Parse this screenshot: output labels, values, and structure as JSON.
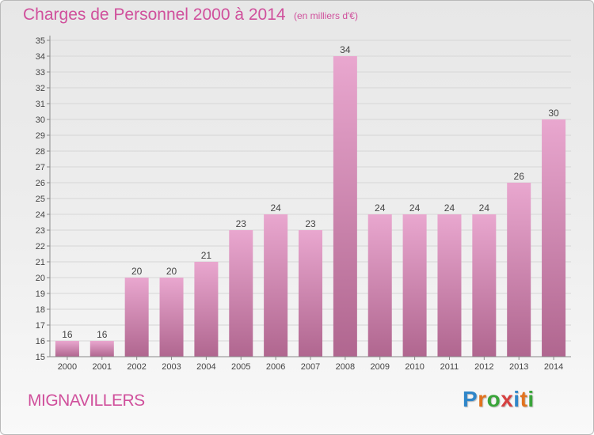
{
  "title": "Charges de Personnel 2000 à 2014",
  "subtitle": "(en milliers d'€)",
  "commune": "MIGNAVILLERS",
  "brand": {
    "letters": [
      "P",
      "r",
      "o",
      "x",
      "i",
      "t",
      "i"
    ],
    "colors": [
      "#2f86c9",
      "#e2731f",
      "#3aa53a",
      "#d64040",
      "#2f86c9",
      "#e2731f",
      "#3aa53a"
    ]
  },
  "colors": {
    "title": "#d0509c",
    "bar_top": "#e9a7cf",
    "bar_bottom": "#b0668f",
    "grid": "#d6d6d6",
    "axis": "#8a8a8a",
    "text": "#444444"
  },
  "chart_data": {
    "type": "bar",
    "title": "Charges de Personnel 2000 à 2014",
    "subtitle": "(en milliers d'€)",
    "categories": [
      "2000",
      "2001",
      "2002",
      "2003",
      "2004",
      "2005",
      "2006",
      "2007",
      "2008",
      "2009",
      "2010",
      "2011",
      "2012",
      "2013",
      "2014"
    ],
    "values": [
      16,
      16,
      20,
      20,
      21,
      23,
      24,
      23,
      34,
      24,
      24,
      24,
      24,
      26,
      30
    ],
    "yticks": [
      15,
      16,
      17,
      18,
      19,
      20,
      21,
      22,
      23,
      24,
      25,
      26,
      27,
      28,
      29,
      30,
      31,
      32,
      33,
      34,
      35
    ],
    "ylim": [
      15,
      35
    ],
    "grid": true,
    "data_labels": true
  }
}
